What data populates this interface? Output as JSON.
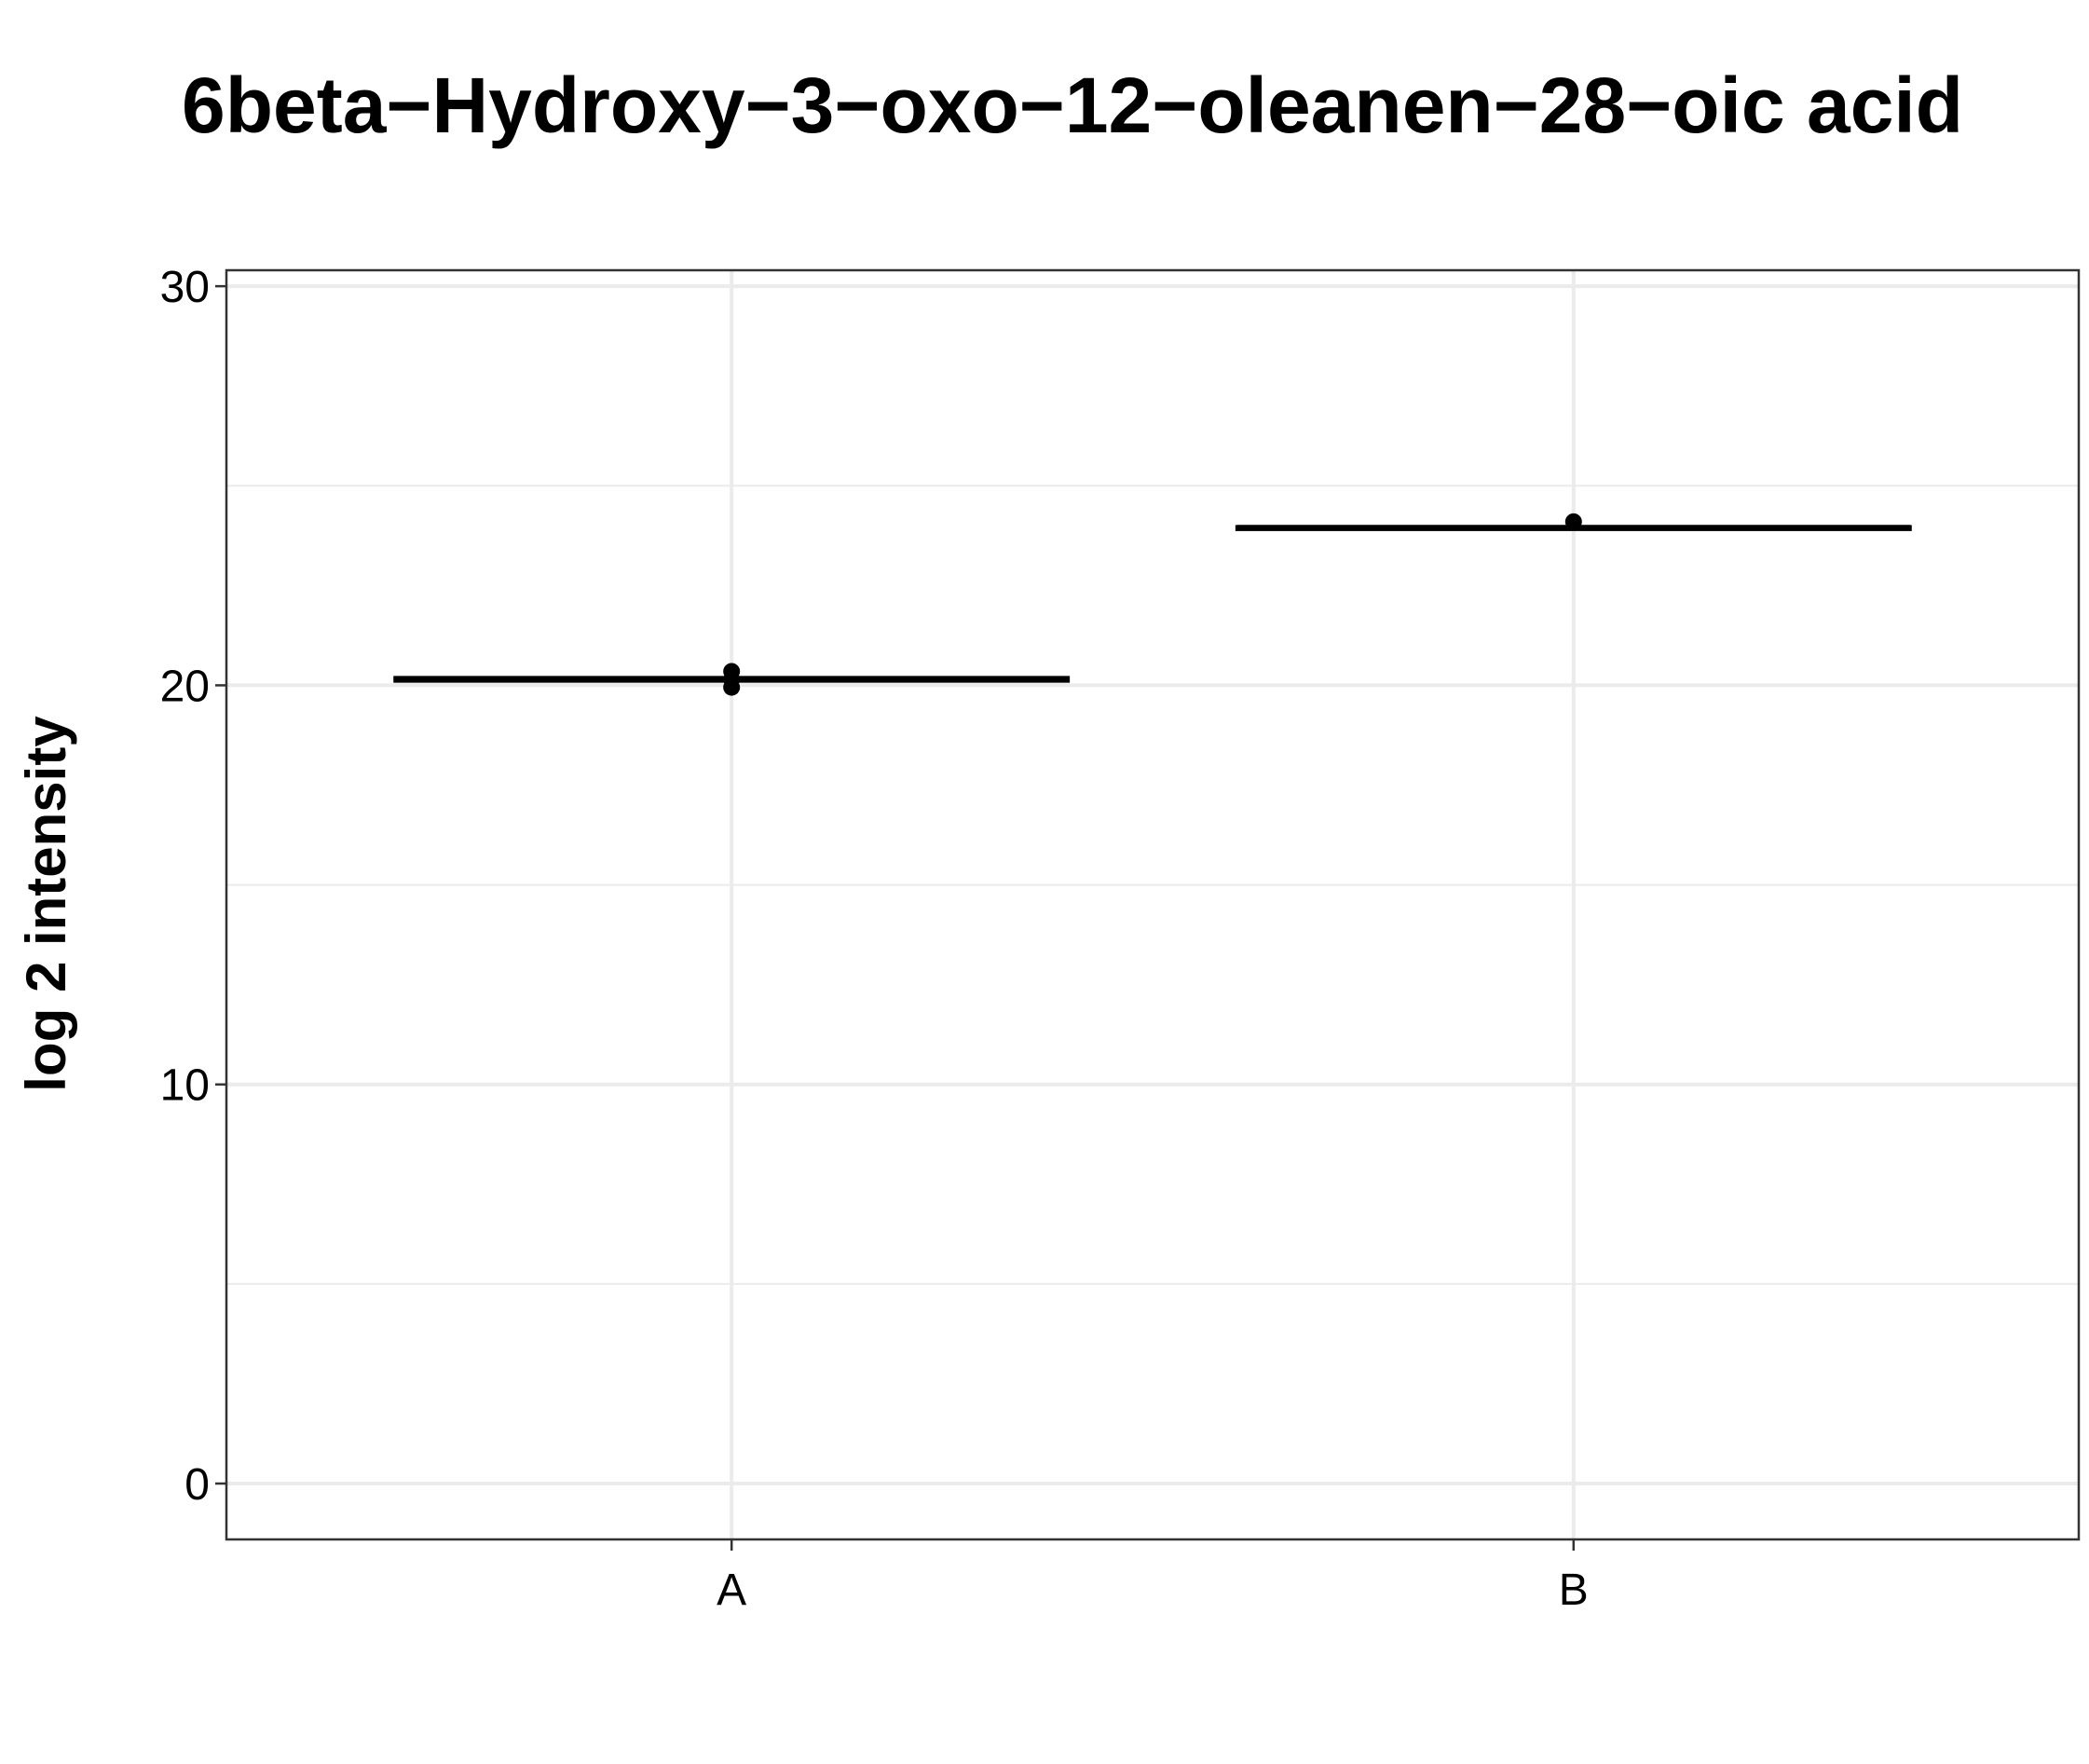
{
  "chart_data": {
    "type": "box",
    "title": "6beta−Hydroxy−3−oxo−12−oleanen−28−oic acid",
    "ylabel": "log 2 intensity",
    "xlabel": "",
    "categories": [
      "A",
      "B"
    ],
    "ylim": [
      -1.4,
      30.4
    ],
    "yticks": [
      0,
      10,
      20,
      30
    ],
    "ytick_labels": [
      "0",
      "10",
      "20",
      "30"
    ],
    "grid": true,
    "boxes": [
      {
        "category": "A",
        "median": 20.15,
        "q1": 20.1,
        "q3": 20.2,
        "whisker_low": 20.1,
        "whisker_high": 20.2,
        "points": [
          20.35,
          20.15,
          19.95
        ]
      },
      {
        "category": "B",
        "median": 23.95,
        "q1": 23.9,
        "q3": 23.98,
        "whisker_low": 23.9,
        "whisker_high": 23.98,
        "points": [
          24.1
        ]
      }
    ],
    "colors": {
      "box": "#000000",
      "points": "#000000",
      "grid": "#ebebeb",
      "panel_border": "#333333"
    }
  }
}
